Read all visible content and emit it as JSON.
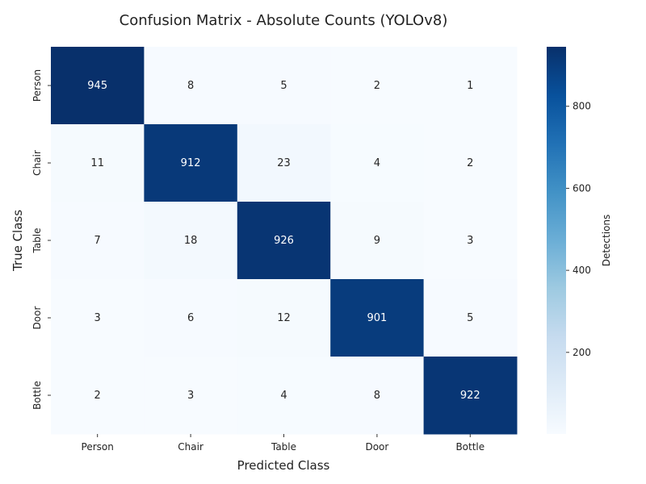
{
  "chart_data": {
    "type": "heatmap",
    "title": "Confusion Matrix - Absolute Counts (YOLOv8)",
    "xlabel": "Predicted Class",
    "ylabel": "True Class",
    "x_categories": [
      "Person",
      "Chair",
      "Table",
      "Door",
      "Bottle"
    ],
    "y_categories": [
      "Person",
      "Chair",
      "Table",
      "Door",
      "Bottle"
    ],
    "values": [
      [
        945,
        8,
        5,
        2,
        1
      ],
      [
        11,
        912,
        23,
        4,
        2
      ],
      [
        7,
        18,
        926,
        9,
        3
      ],
      [
        3,
        6,
        12,
        901,
        5
      ],
      [
        2,
        3,
        4,
        8,
        922
      ]
    ],
    "colorbar": {
      "label": "Detections",
      "ticks": [
        200,
        400,
        600,
        800
      ],
      "range": [
        1,
        945
      ],
      "colormap": "Blues"
    }
  }
}
